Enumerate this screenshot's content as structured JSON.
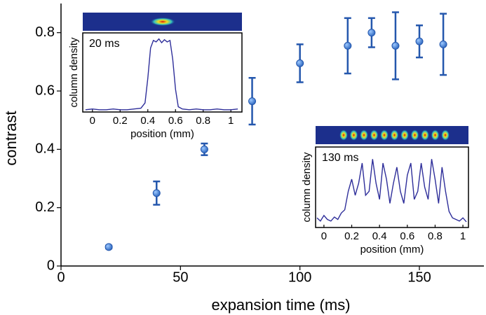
{
  "chart_data": [
    {
      "type": "scatter",
      "xlabel": "expansion time (ms)",
      "ylabel": "contrast",
      "x": [
        20,
        40,
        60,
        80,
        100,
        120,
        130,
        140,
        150,
        160
      ],
      "values": [
        0.065,
        0.25,
        0.4,
        0.565,
        0.695,
        0.755,
        0.8,
        0.755,
        0.77,
        0.76
      ],
      "errors": [
        0.005,
        0.04,
        0.02,
        0.08,
        0.065,
        0.095,
        0.05,
        0.115,
        0.055,
        0.105
      ],
      "color": "#3b7fd4",
      "error_color": "#2457ad",
      "xlim": [
        0,
        177
      ],
      "ylim": [
        0,
        0.9
      ],
      "xticks": [
        0,
        50,
        100,
        150
      ],
      "yticks": [
        0,
        0.2,
        0.4,
        0.6,
        0.8
      ]
    },
    {
      "type": "line",
      "annotation": "20 ms",
      "xlabel": "position (mm)",
      "ylabel": "column density",
      "color": "#2e2e9a",
      "x": [
        -0.05,
        0,
        0.05,
        0.1,
        0.15,
        0.2,
        0.25,
        0.3,
        0.35,
        0.38,
        0.4,
        0.42,
        0.44,
        0.46,
        0.48,
        0.5,
        0.52,
        0.54,
        0.56,
        0.58,
        0.6,
        0.62,
        0.65,
        0.7,
        0.75,
        0.8,
        0.85,
        0.9,
        0.95,
        1.0,
        1.05
      ],
      "values": [
        0.03,
        0.04,
        0.03,
        0.03,
        0.04,
        0.03,
        0.03,
        0.04,
        0.05,
        0.12,
        0.45,
        0.85,
        0.95,
        0.93,
        0.97,
        0.92,
        0.96,
        0.93,
        0.95,
        0.7,
        0.3,
        0.07,
        0.04,
        0.03,
        0.04,
        0.03,
        0.03,
        0.04,
        0.03,
        0.03,
        0.04
      ],
      "xlim": [
        -0.07,
        1.08
      ],
      "ylim": [
        0,
        1.05
      ],
      "xticks": [
        0,
        0.2,
        0.4,
        0.6,
        0.8,
        1
      ]
    },
    {
      "type": "line",
      "annotation": "130 ms",
      "xlabel": "position (mm)",
      "ylabel": "column density",
      "color": "#2e2e9a",
      "x": [
        -0.05,
        -0.025,
        0,
        0.025,
        0.05,
        0.075,
        0.1,
        0.125,
        0.15,
        0.175,
        0.2,
        0.225,
        0.25,
        0.275,
        0.3,
        0.325,
        0.35,
        0.375,
        0.4,
        0.425,
        0.45,
        0.475,
        0.5,
        0.525,
        0.55,
        0.575,
        0.6,
        0.625,
        0.65,
        0.675,
        0.7,
        0.725,
        0.75,
        0.775,
        0.8,
        0.825,
        0.85,
        0.875,
        0.9,
        0.925,
        0.95,
        0.975,
        1.0,
        1.025
      ],
      "values": [
        0.12,
        0.08,
        0.15,
        0.1,
        0.08,
        0.13,
        0.1,
        0.18,
        0.22,
        0.45,
        0.6,
        0.4,
        0.55,
        0.8,
        0.4,
        0.45,
        0.85,
        0.55,
        0.35,
        0.8,
        0.6,
        0.3,
        0.55,
        0.75,
        0.45,
        0.3,
        0.65,
        0.8,
        0.35,
        0.45,
        0.8,
        0.5,
        0.35,
        0.85,
        0.6,
        0.3,
        0.75,
        0.45,
        0.2,
        0.12,
        0.1,
        0.08,
        0.12,
        0.07
      ],
      "xlim": [
        -0.06,
        1.04
      ],
      "ylim": [
        0,
        1
      ],
      "xticks": [
        0,
        0.2,
        0.4,
        0.6,
        0.8,
        1
      ]
    }
  ]
}
